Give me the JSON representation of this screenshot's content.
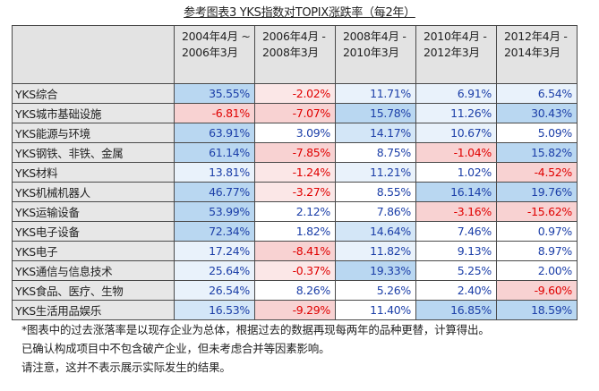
{
  "title": "参考图表3 YKS指数对TOPIX涨跌率（每2年）",
  "table": {
    "headers": [
      "2004年4月 ~ 2006年3月",
      "2006年4月 - 2008年3月",
      "2008年4月 - 2010年3月",
      "2010年4月 - 2012年3月",
      "2012年4月 - 2014年3月"
    ],
    "rows": [
      {
        "label": "YKS综合",
        "values": [
          "35.55%",
          "-2.02%",
          "11.71%",
          "6.91%",
          "6.54%"
        ],
        "shade": [
          "b3",
          "r1",
          "b1",
          "b1",
          "b1"
        ]
      },
      {
        "label": "YKS城市基础设施",
        "values": [
          "-6.81%",
          "-7.07%",
          "15.78%",
          "11.26%",
          "30.43%"
        ],
        "shade": [
          "r2",
          "r2",
          "b3",
          "b1",
          "b3"
        ]
      },
      {
        "label": "YKS能源与环境",
        "values": [
          "63.91%",
          "3.09%",
          "14.17%",
          "10.67%",
          "5.09%"
        ],
        "shade": [
          "b3",
          "w",
          "b2",
          "b1",
          "w"
        ]
      },
      {
        "label": "YKS钢铁、非铁、金属",
        "values": [
          "61.14%",
          "-7.85%",
          "8.75%",
          "-1.04%",
          "15.82%"
        ],
        "shade": [
          "b3",
          "r2",
          "w",
          "r2",
          "b3"
        ]
      },
      {
        "label": "YKS材料",
        "values": [
          "13.81%",
          "-1.24%",
          "11.21%",
          "1.02%",
          "-4.52%"
        ],
        "shade": [
          "b1",
          "r1",
          "b1",
          "w",
          "r2"
        ]
      },
      {
        "label": "YKS机械机器人",
        "values": [
          "46.77%",
          "-3.27%",
          "8.55%",
          "16.14%",
          "19.76%"
        ],
        "shade": [
          "b3",
          "r1",
          "w",
          "b3",
          "b3"
        ]
      },
      {
        "label": "YKS运输设备",
        "values": [
          "53.99%",
          "2.12%",
          "7.86%",
          "-3.16%",
          "-15.62%"
        ],
        "shade": [
          "b3",
          "w",
          "w",
          "r2",
          "r2"
        ]
      },
      {
        "label": "YKS电子设备",
        "values": [
          "72.34%",
          "1.82%",
          "14.64%",
          "7.46%",
          "0.97%"
        ],
        "shade": [
          "b3",
          "w",
          "b2",
          "w",
          "w"
        ]
      },
      {
        "label": "YKS电子",
        "values": [
          "17.24%",
          "-8.41%",
          "11.82%",
          "9.13%",
          "8.97%"
        ],
        "shade": [
          "b1",
          "r2",
          "b1",
          "w",
          "w"
        ]
      },
      {
        "label": "YKS通信与信息技术",
        "values": [
          "25.64%",
          "-0.37%",
          "19.33%",
          "5.25%",
          "2.00%"
        ],
        "shade": [
          "b1",
          "r1",
          "b3",
          "w",
          "w"
        ]
      },
      {
        "label": "YKS食品、医疗、生物",
        "values": [
          "26.54%",
          "8.26%",
          "5.26%",
          "2.40%",
          "-9.60%"
        ],
        "shade": [
          "b1",
          "w",
          "w",
          "w",
          "r2"
        ]
      },
      {
        "label": "YKS生活用品娱乐",
        "values": [
          "16.53%",
          "-9.29%",
          "11.40%",
          "16.85%",
          "18.59%"
        ],
        "shade": [
          "b2",
          "r2",
          "w",
          "b3",
          "b3"
        ]
      }
    ]
  },
  "notes": [
    "*图表中的过去涨落率是以现存企业为总体，根据过去的数据再现每两年的品种更替，计算得出。",
    "已确认构成项目中不包含破产企业，但未考虑合并等因素影响。",
    "请注意，这并不表示展示实际发生的结果。"
  ],
  "colors": {
    "positive_text": "#1c3fa8",
    "negative_text": "#e00000",
    "header_bg": "#e3e3e3",
    "blue_light": "#e9f2fb",
    "blue_mid": "#d3e6f7",
    "blue_strong": "#b9d7f1",
    "red_light": "#fbe7e7",
    "red_mid": "#f8d2d2"
  }
}
